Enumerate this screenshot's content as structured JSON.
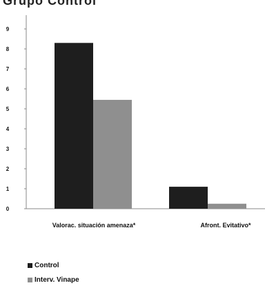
{
  "header": {
    "cut_title": "Grupo Control"
  },
  "colors": {
    "control": "#1e1e1e",
    "intervention": "#8f8f8f",
    "axis": "#888888"
  },
  "legend": {
    "items": [
      {
        "label": "Control",
        "color": "#1e1e1e"
      },
      {
        "label": "Interv. Vinape",
        "color": "#8f8f8f"
      }
    ]
  },
  "chart_data": {
    "type": "bar",
    "categories": [
      "Valorac. situación amenaza*",
      "Afront. Evitativo*"
    ],
    "series": [
      {
        "name": "Control",
        "values": [
          8.3,
          1.1
        ]
      },
      {
        "name": "Interv. Vinape",
        "values": [
          5.45,
          0.25
        ]
      }
    ],
    "ylim": [
      0,
      9
    ],
    "yticks": [
      0,
      1,
      2,
      3,
      4,
      5,
      6,
      7,
      8,
      9
    ],
    "grid": false,
    "legend_position": "bottom-left"
  }
}
